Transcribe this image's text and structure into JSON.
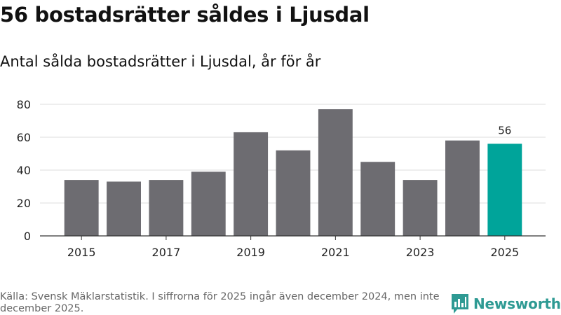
{
  "title": "56 bostadsrätter såldes i Ljusdal",
  "subtitle": "Antal sålda bostadsrätter i Ljusdal, år för år",
  "footer": "Källa: Svensk Mäklarstatistik. I siffrorna för 2025 ingår även december 2024, men inte december 2025.",
  "logo": {
    "text": "Newsworthy",
    "icon": "bar-chart-logo-icon",
    "color": "#2e9a93"
  },
  "colors": {
    "bar": "#6d6c71",
    "highlight": "#00a49a",
    "grid": "#dddddd",
    "text": "#222222"
  },
  "chart_data": {
    "type": "bar",
    "categories": [
      "2015",
      "2016",
      "2017",
      "2018",
      "2019",
      "2020",
      "2021",
      "2022",
      "2023",
      "2024",
      "2025"
    ],
    "values": [
      34,
      33,
      34,
      39,
      63,
      52,
      77,
      45,
      34,
      58,
      56
    ],
    "x_tick_labels": [
      "2015",
      "2017",
      "2019",
      "2021",
      "2023",
      "2025"
    ],
    "y_ticks": [
      0,
      20,
      40,
      60,
      80
    ],
    "ylim": [
      0,
      80
    ],
    "highlight_category": "2025",
    "data_labels": [
      {
        "category": "2025",
        "text": "56"
      }
    ],
    "title": "56 bostadsrätter såldes i Ljusdal",
    "xlabel": "",
    "ylabel": "",
    "grid": true
  }
}
